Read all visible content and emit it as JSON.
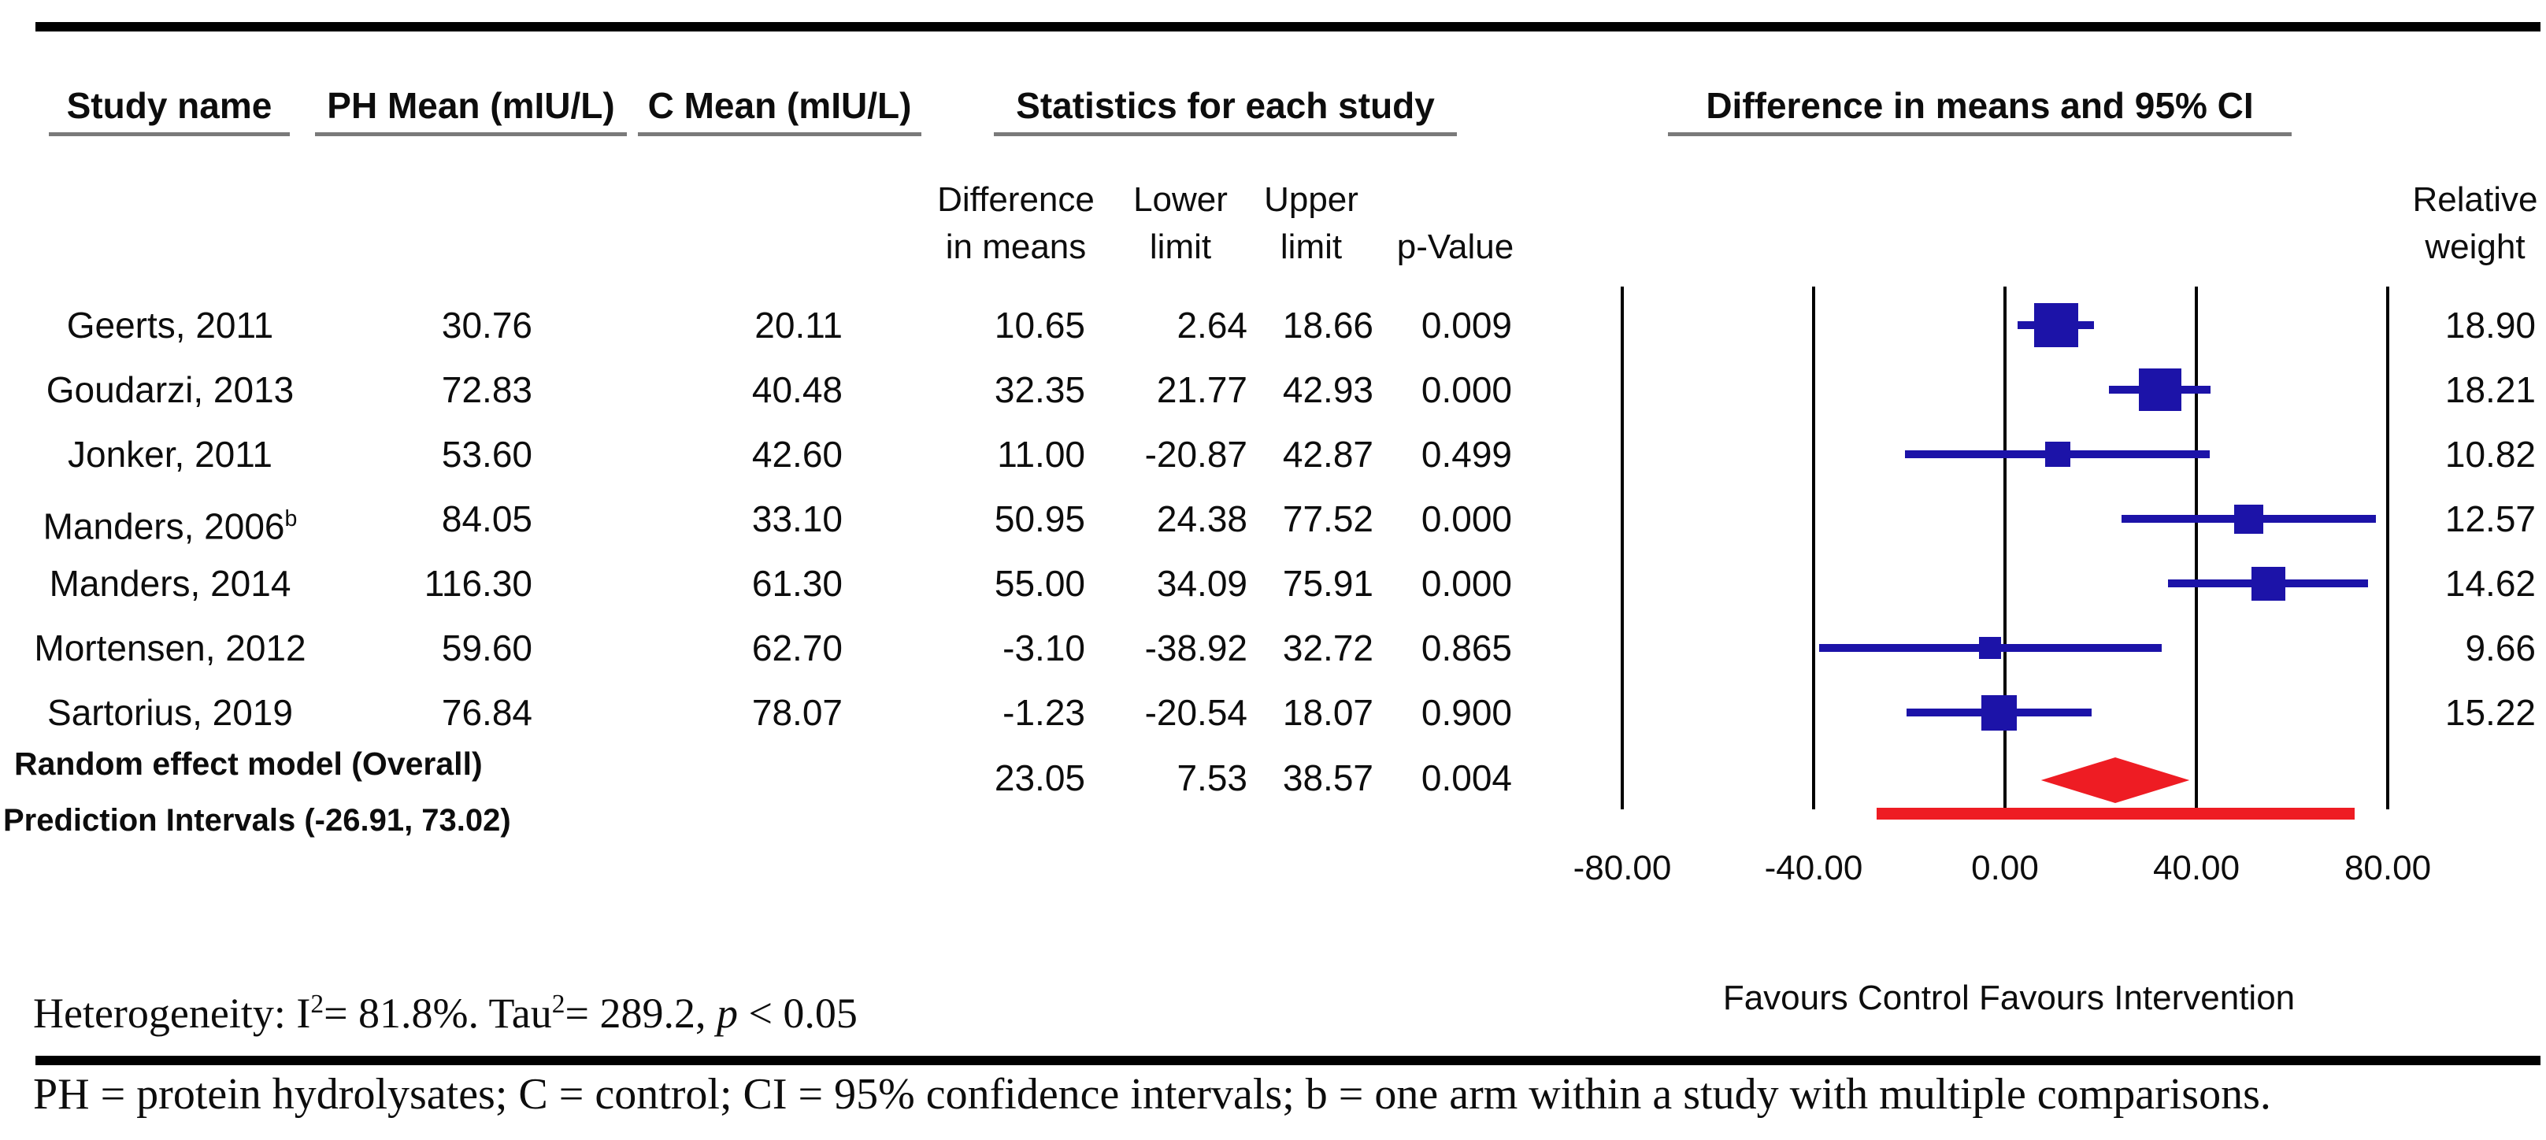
{
  "colors": {
    "marker_blue": "#1c13a8",
    "overall_red": "#ee1c23",
    "underline_gray": "#7a7a7a",
    "text": "#0d0d0d",
    "rule_black": "#000000"
  },
  "headers": {
    "study_name": "Study name",
    "ph_mean": "PH Mean (mIU/L)",
    "c_mean": "C Mean (mIU/L)",
    "stats_group": "Statistics for each study",
    "plot_group": "Difference in means and 95% CI"
  },
  "subheaders": {
    "diff_line1": "Difference",
    "diff_line2": "in means",
    "lower_line1": "Lower",
    "lower_line2": "limit",
    "upper_line1": "Upper",
    "upper_line2": "limit",
    "p_value": "p-Value",
    "weight_line1": "Relative",
    "weight_line2": "weight"
  },
  "chart_data": {
    "type": "forest",
    "title": "Difference in means and 95% CI",
    "xlim": [
      -80,
      80
    ],
    "grid": true,
    "legend_position": "none",
    "ticks": [
      {
        "label": "-80.00",
        "value": -80
      },
      {
        "label": "-40.00",
        "value": -40
      },
      {
        "label": "0.00",
        "value": 0
      },
      {
        "label": "40.00",
        "value": 40
      },
      {
        "label": "80.00",
        "value": 80
      }
    ],
    "studies": [
      {
        "name": "Geerts, 2011",
        "sup": "",
        "ph_mean": 30.76,
        "c_mean": 20.11,
        "diff": 10.65,
        "lower": 2.64,
        "upper": 18.66,
        "p": "0.009",
        "weight": 18.9
      },
      {
        "name": "Goudarzi, 2013",
        "sup": "",
        "ph_mean": 72.83,
        "c_mean": 40.48,
        "diff": 32.35,
        "lower": 21.77,
        "upper": 42.93,
        "p": "0.000",
        "weight": 18.21
      },
      {
        "name": "Jonker, 2011",
        "sup": "",
        "ph_mean": 53.6,
        "c_mean": 42.6,
        "diff": 11.0,
        "lower": -20.87,
        "upper": 42.87,
        "p": "0.499",
        "weight": 10.82
      },
      {
        "name": "Manders, 2006",
        "sup": "b",
        "ph_mean": 84.05,
        "c_mean": 33.1,
        "diff": 50.95,
        "lower": 24.38,
        "upper": 77.52,
        "p": "0.000",
        "weight": 12.57
      },
      {
        "name": "Manders, 2014",
        "sup": "",
        "ph_mean": 116.3,
        "c_mean": 61.3,
        "diff": 55.0,
        "lower": 34.09,
        "upper": 75.91,
        "p": "0.000",
        "weight": 14.62
      },
      {
        "name": "Mortensen, 2012",
        "sup": "",
        "ph_mean": 59.6,
        "c_mean": 62.7,
        "diff": -3.1,
        "lower": -38.92,
        "upper": 32.72,
        "p": "0.865",
        "weight": 9.66
      },
      {
        "name": "Sartorius, 2019",
        "sup": "",
        "ph_mean": 76.84,
        "c_mean": 78.07,
        "diff": -1.23,
        "lower": -20.54,
        "upper": 18.07,
        "p": "0.900",
        "weight": 15.22
      }
    ],
    "overall": {
      "label": "Random effect model (Overall)",
      "diff": 23.05,
      "lower": 7.53,
      "upper": 38.57,
      "p": "0.004"
    },
    "prediction": {
      "label": "Prediction Intervals (-26.91, 73.02)",
      "lower": -26.91,
      "upper": 73.02
    }
  },
  "notes": {
    "heterogeneity": {
      "prefix": "Heterogeneity: I",
      "sup1": "2",
      "mid": "= 81.8%. Tau",
      "sup2": "2",
      "tail": "= 289.2, ",
      "p_symbol": "p",
      "suffix": " < 0.05"
    },
    "favours": "Favours Control Favours Intervention",
    "footnote": "PH = protein hydrolysates; C = control; CI = 95% confidence intervals; b = one arm within a study with multiple comparisons."
  }
}
